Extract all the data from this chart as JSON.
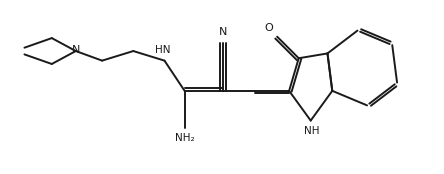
{
  "background_color": "#ffffff",
  "line_color": "#1a1a1a",
  "line_width": 1.4,
  "dbo": 0.055,
  "figsize": [
    4.44,
    1.74
  ],
  "dpi": 100,
  "xlim": [
    0,
    9.0
  ],
  "ylim": [
    0,
    3.6
  ]
}
